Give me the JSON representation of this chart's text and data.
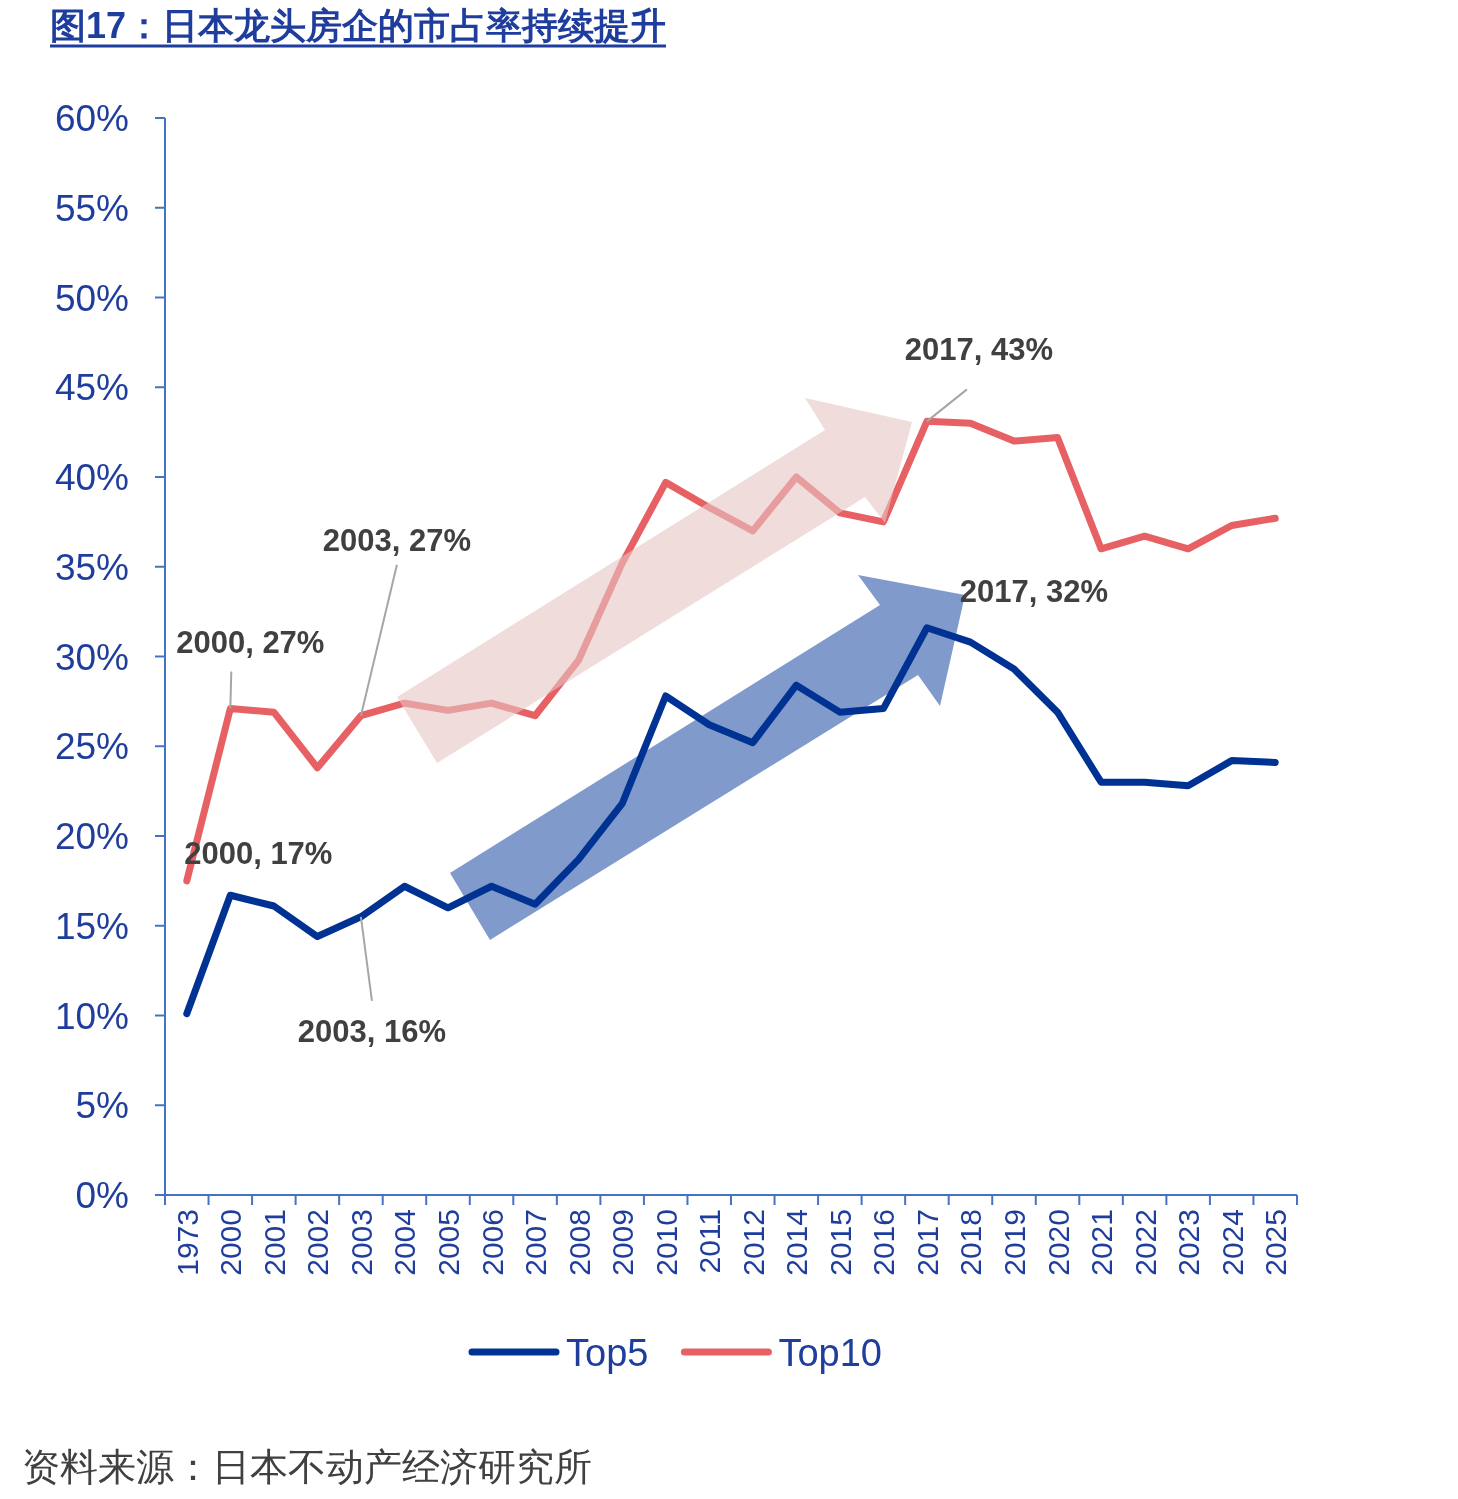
{
  "chart_data": {
    "type": "line",
    "title": "图17：日本龙头房企的市占率持续提升",
    "categories": [
      "1973",
      "2000",
      "2001",
      "2002",
      "2003",
      "2004",
      "2005",
      "2006",
      "2007",
      "2008",
      "2009",
      "2010",
      "2011",
      "2012",
      "2014",
      "2015",
      "2016",
      "2017",
      "2018",
      "2019",
      "2020",
      "2021",
      "2022",
      "2023",
      "2024",
      "2025"
    ],
    "series": [
      {
        "name": "Top5",
        "color": "#003293",
        "values": [
          10.1,
          16.7,
          16.1,
          14.4,
          15.5,
          17.2,
          16.0,
          17.2,
          16.2,
          18.7,
          21.8,
          27.8,
          26.2,
          25.2,
          28.4,
          26.9,
          27.1,
          31.6,
          30.8,
          29.3,
          26.9,
          23.0,
          23.0,
          22.8,
          24.2,
          24.1
        ]
      },
      {
        "name": "Top10",
        "color": "#e66064",
        "values": [
          17.5,
          27.1,
          26.9,
          23.8,
          26.7,
          27.4,
          27.0,
          27.4,
          26.7,
          29.8,
          35.2,
          39.7,
          38.3,
          37.0,
          40.0,
          38.0,
          37.5,
          43.1,
          43.0,
          42.0,
          42.2,
          36.0,
          36.7,
          36.0,
          37.3,
          37.7
        ]
      }
    ],
    "ylim": [
      0,
      60
    ],
    "yticks": [
      {
        "value": 0,
        "label": "0%"
      },
      {
        "value": 5,
        "label": "5%"
      },
      {
        "value": 10,
        "label": "10%"
      },
      {
        "value": 15,
        "label": "15%"
      },
      {
        "value": 20,
        "label": "20%"
      },
      {
        "value": 25,
        "label": "25%"
      },
      {
        "value": 30,
        "label": "30%"
      },
      {
        "value": 35,
        "label": "35%"
      },
      {
        "value": 40,
        "label": "40%"
      },
      {
        "value": 45,
        "label": "45%"
      },
      {
        "value": 50,
        "label": "50%"
      },
      {
        "value": 55,
        "label": "55%"
      },
      {
        "value": 60,
        "label": "60%"
      }
    ],
    "grid": false,
    "legend": "bottom",
    "marker": "none",
    "line_style": "solid",
    "annotations": [
      {
        "text": "2000, 27%",
        "x": "2000",
        "y": 27.1
      },
      {
        "text": "2003, 27%",
        "x": "2003",
        "y": 26.7
      },
      {
        "text": "2000, 17%",
        "x": "2000",
        "y": 16.7
      },
      {
        "text": "2003, 16%",
        "x": "2003",
        "y": 15.5
      },
      {
        "text": "2017, 43%",
        "x": "2017",
        "y": 43.1
      },
      {
        "text": "2017, 32%",
        "x": "2017",
        "y": 31.6
      },
      "资料来源：日本不动产经济研究所"
    ]
  }
}
